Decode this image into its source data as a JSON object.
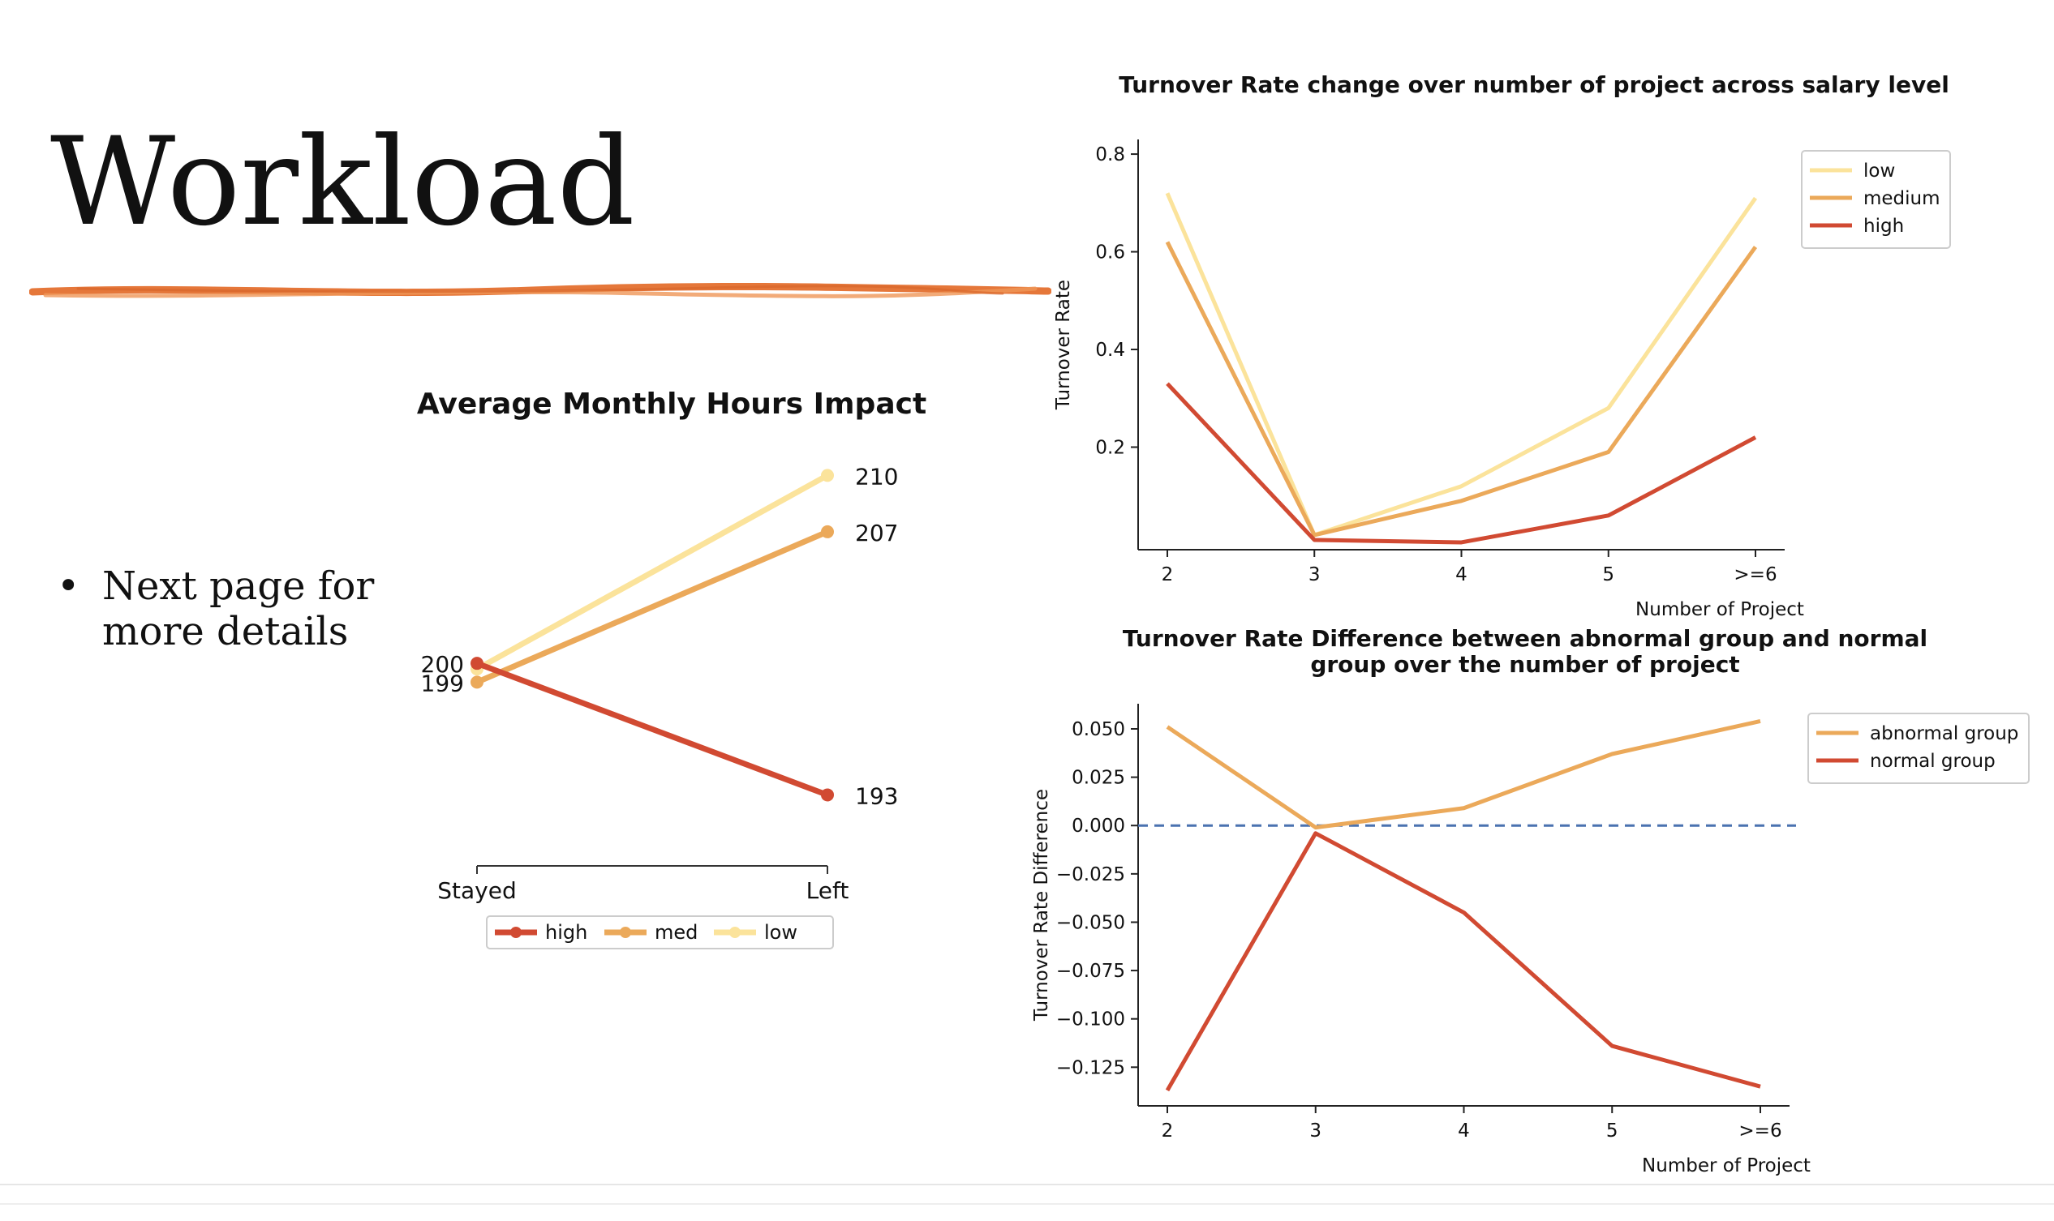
{
  "slide": {
    "title": "Workload",
    "bullets": [
      "Next page for more details"
    ],
    "colors": {
      "high": "#d14a32",
      "med": "#eba95a",
      "low": "#fbe39b",
      "brush": "#e5773a",
      "zero_line": "#4a72b0"
    }
  },
  "chart_data": [
    {
      "type": "line",
      "title": "Average Monthly Hours Impact",
      "categories": [
        "Stayed",
        "Left"
      ],
      "series": [
        {
          "name": "high",
          "values": [
            200,
            193
          ],
          "labels": [
            "200",
            "193"
          ]
        },
        {
          "name": "med",
          "values": [
            199,
            207
          ],
          "labels": [
            "199",
            "207"
          ]
        },
        {
          "name": "low",
          "values": [
            199.7,
            210
          ],
          "labels": [
            "",
            "210"
          ]
        }
      ],
      "xlabel": "",
      "ylabel": "",
      "ylim": [
        190,
        212
      ],
      "grid": false,
      "legend": "bottom-center"
    },
    {
      "type": "line",
      "title": "Turnover Rate change over number of project across salary level",
      "categories": [
        "2",
        "3",
        "4",
        "5",
        ">=6"
      ],
      "series": [
        {
          "name": "low",
          "values": [
            0.72,
            0.02,
            0.12,
            0.28,
            0.71
          ]
        },
        {
          "name": "medium",
          "values": [
            0.62,
            0.02,
            0.09,
            0.19,
            0.61
          ]
        },
        {
          "name": "high",
          "values": [
            0.33,
            0.01,
            0.005,
            0.06,
            0.22
          ]
        }
      ],
      "yticks": [
        "0.2",
        "0.4",
        "0.6",
        "0.8"
      ],
      "xlabel": "Number of Project",
      "ylabel": "Turnover Rate",
      "ylim": [
        -0.01,
        0.83
      ],
      "grid": false,
      "legend": "top-right"
    },
    {
      "type": "line",
      "title": "Turnover Rate Difference between abnormal group and normal group over the number of project",
      "title_lines": [
        "Turnover Rate Difference between abnormal group and normal",
        "group over the number of project"
      ],
      "categories": [
        "2",
        "3",
        "4",
        "5",
        ">=6"
      ],
      "series": [
        {
          "name": "abnormal group",
          "values": [
            0.051,
            -0.001,
            0.009,
            0.037,
            0.054
          ]
        },
        {
          "name": "normal group",
          "values": [
            -0.137,
            -0.004,
            -0.045,
            -0.114,
            -0.135
          ]
        }
      ],
      "yticks": [
        "0.050",
        "0.025",
        "0.000",
        "−0.025",
        "−0.050",
        "−0.075",
        "−0.100",
        "−0.125"
      ],
      "reference_line": 0,
      "xlabel": "Number of Project",
      "ylabel": "Turnover Rate Difference",
      "ylim": [
        -0.145,
        0.063
      ],
      "grid": false,
      "legend": "top-right"
    }
  ]
}
